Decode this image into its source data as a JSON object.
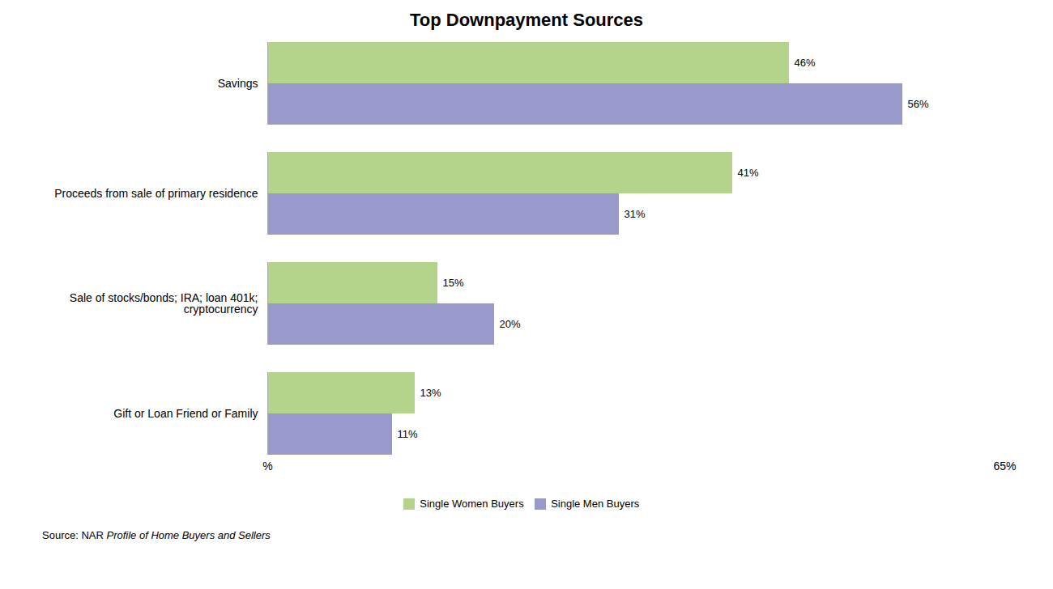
{
  "chart_data": {
    "type": "bar",
    "orientation": "horizontal",
    "title": "Top Downpayment Sources",
    "categories": [
      "Gift or Loan Friend or Family",
      "Sale of stocks/bonds; IRA; loan 401k;\ncryptocurrency",
      "Proceeds from sale of primary residence",
      "Savings"
    ],
    "series": [
      {
        "name": "Single Women Buyers",
        "color": "#b5d48b",
        "values": [
          13,
          15,
          41,
          46
        ],
        "value_labels": [
          "13%",
          "15%",
          "41%",
          "46%"
        ]
      },
      {
        "name": "Single Men Buyers",
        "color": "#9999cc",
        "values": [
          11,
          20,
          31,
          56
        ],
        "value_labels": [
          "11%",
          "20%",
          "31%",
          "56%"
        ]
      }
    ],
    "xlim": [
      0,
      65
    ],
    "xticks": [
      {
        "value": 0,
        "label": "%"
      },
      {
        "value": 65,
        "label": "65%"
      }
    ],
    "data_labels": true,
    "grid": false,
    "caption": [
      "Source: NAR ",
      "Profile of Home Buyers and Sellers"
    ]
  }
}
